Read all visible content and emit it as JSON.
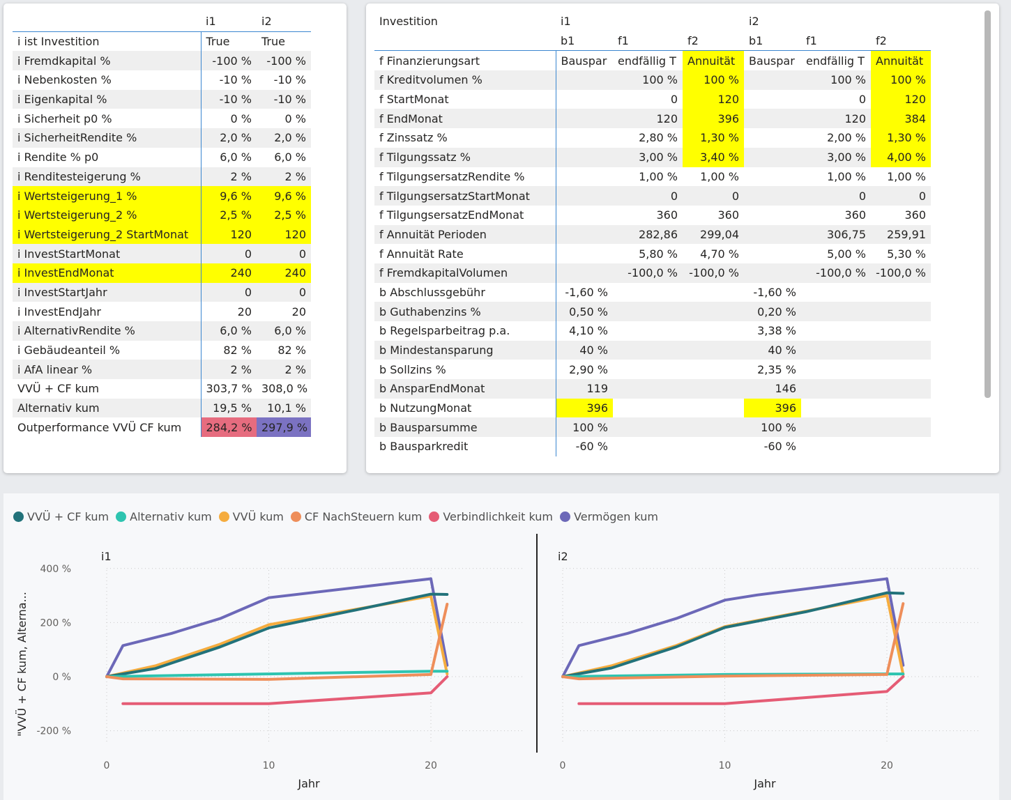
{
  "left_table": {
    "headers": [
      "",
      "i1",
      "i2"
    ],
    "rows": [
      {
        "label": "i ist Investition",
        "v": [
          "True",
          "True"
        ],
        "hl": false,
        "align": "left"
      },
      {
        "label": "i Fremdkapital %",
        "v": [
          "-100 %",
          "-100 %"
        ],
        "hl": false
      },
      {
        "label": "i Nebenkosten %",
        "v": [
          "-10 %",
          "-10 %"
        ],
        "hl": false
      },
      {
        "label": "i Eigenkapital %",
        "v": [
          "-10 %",
          "-10 %"
        ],
        "hl": false
      },
      {
        "label": "i Sicherheit p0 %",
        "v": [
          "0 %",
          "0 %"
        ],
        "hl": false
      },
      {
        "label": "i SicherheitRendite %",
        "v": [
          "2,0 %",
          "2,0 %"
        ],
        "hl": false
      },
      {
        "label": "i Rendite % p0",
        "v": [
          "6,0 %",
          "6,0 %"
        ],
        "hl": false
      },
      {
        "label": "i Renditesteigerung %",
        "v": [
          "2 %",
          "2 %"
        ],
        "hl": false
      },
      {
        "label": "i Wertsteigerung_1 %",
        "v": [
          "9,6 %",
          "9,6 %"
        ],
        "hl": true
      },
      {
        "label": "i Wertsteigerung_2 %",
        "v": [
          "2,5 %",
          "2,5 %"
        ],
        "hl": true
      },
      {
        "label": "i Wertsteigerung_2 StartMonat",
        "v": [
          "120",
          "120"
        ],
        "hl": true
      },
      {
        "label": "i InvestStartMonat",
        "v": [
          "0",
          "0"
        ],
        "hl": false
      },
      {
        "label": "i InvestEndMonat",
        "v": [
          "240",
          "240"
        ],
        "hl": true
      },
      {
        "label": "i InvestStartJahr",
        "v": [
          "0",
          "0"
        ],
        "hl": false
      },
      {
        "label": "i InvestEndJahr",
        "v": [
          "20",
          "20"
        ],
        "hl": false
      },
      {
        "label": "i AlternativRendite %",
        "v": [
          "6,0 %",
          "6,0 %"
        ],
        "hl": false
      },
      {
        "label": "i Gebäudeanteil %",
        "v": [
          "82 %",
          "82 %"
        ],
        "hl": false
      },
      {
        "label": "i AfA linear %",
        "v": [
          "2 %",
          "2 %"
        ],
        "hl": false
      },
      {
        "label": "VVÜ + CF kum",
        "v": [
          "303,7 %",
          "308,0 %"
        ],
        "hl": false
      },
      {
        "label": "Alternativ kum",
        "v": [
          "19,5 %",
          "10,1 %"
        ],
        "hl": false
      },
      {
        "label": "Outperformance VVÜ CF kum",
        "v": [
          "284,2 %",
          "297,9 %"
        ],
        "hl": false,
        "colors": [
          "#e66c7f",
          "#7b72c2"
        ]
      }
    ]
  },
  "right_table": {
    "header1": [
      "Investition",
      "i1",
      "",
      "",
      "i2",
      "",
      ""
    ],
    "header2": [
      "",
      "b1",
      "f1",
      "f2",
      "b1",
      "f1",
      "f2"
    ],
    "rows": [
      {
        "label": "f Finanzierungsart",
        "v": [
          "Bauspar",
          "endfällig T",
          "Annuität",
          "Bauspar",
          "endfällig T",
          "Annuität"
        ],
        "yl": [
          2,
          5
        ],
        "left": true
      },
      {
        "label": "f Kreditvolumen %",
        "v": [
          "",
          "100 %",
          "100 %",
          "",
          "100 %",
          "100 %"
        ],
        "yl": [
          2,
          5
        ]
      },
      {
        "label": "f StartMonat",
        "v": [
          "",
          "0",
          "120",
          "",
          "0",
          "120"
        ],
        "yl": [
          2,
          5
        ]
      },
      {
        "label": "f EndMonat",
        "v": [
          "",
          "120",
          "396",
          "",
          "120",
          "384"
        ],
        "yl": [
          2,
          5
        ]
      },
      {
        "label": "f Zinssatz %",
        "v": [
          "",
          "2,80 %",
          "1,30 %",
          "",
          "2,00 %",
          "1,30 %"
        ],
        "yl": [
          2,
          5
        ]
      },
      {
        "label": "f Tilgungssatz %",
        "v": [
          "",
          "3,00 %",
          "3,40 %",
          "",
          "3,00 %",
          "4,00 %"
        ],
        "yl": [
          2,
          5
        ]
      },
      {
        "label": "f TilgungsersatzRendite %",
        "v": [
          "",
          "1,00 %",
          "1,00 %",
          "",
          "1,00 %",
          "1,00 %"
        ],
        "yl": []
      },
      {
        "label": "f TilgungsersatzStartMonat",
        "v": [
          "",
          "0",
          "0",
          "",
          "0",
          "0"
        ],
        "yl": []
      },
      {
        "label": "f TilgungsersatzEndMonat",
        "v": [
          "",
          "360",
          "360",
          "",
          "360",
          "360"
        ],
        "yl": []
      },
      {
        "label": "f Annuität Perioden",
        "v": [
          "",
          "282,86",
          "299,04",
          "",
          "306,75",
          "259,91"
        ],
        "yl": []
      },
      {
        "label": "f Annuität Rate",
        "v": [
          "",
          "5,80 %",
          "4,70 %",
          "",
          "5,00 %",
          "5,30 %"
        ],
        "yl": []
      },
      {
        "label": "f FremdkapitalVolumen",
        "v": [
          "",
          "-100,0 %",
          "-100,0 %",
          "",
          "-100,0 %",
          "-100,0 %"
        ],
        "yl": []
      },
      {
        "label": "b Abschlussgebühr",
        "v": [
          "-1,60 %",
          "",
          "",
          "-1,60 %",
          "",
          ""
        ],
        "yl": []
      },
      {
        "label": "b Guthabenzins %",
        "v": [
          "0,50 %",
          "",
          "",
          "0,20 %",
          "",
          ""
        ],
        "yl": []
      },
      {
        "label": "b Regelsparbeitrag p.a.",
        "v": [
          "4,10 %",
          "",
          "",
          "3,38 %",
          "",
          ""
        ],
        "yl": []
      },
      {
        "label": "b Mindestansparung",
        "v": [
          "40 %",
          "",
          "",
          "40 %",
          "",
          ""
        ],
        "yl": []
      },
      {
        "label": "b Sollzins %",
        "v": [
          "2,90 %",
          "",
          "",
          "2,35 %",
          "",
          ""
        ],
        "yl": []
      },
      {
        "label": "b AnsparEndMonat",
        "v": [
          "119",
          "",
          "",
          "146",
          "",
          ""
        ],
        "yl": []
      },
      {
        "label": "b NutzungMonat",
        "v": [
          "396",
          "",
          "",
          "396",
          "",
          ""
        ],
        "yl": [
          0,
          3
        ]
      },
      {
        "label": "b Bausparsumme",
        "v": [
          "100 %",
          "",
          "",
          "100 %",
          "",
          ""
        ],
        "yl": []
      },
      {
        "label": "b Bausparkredit",
        "v": [
          "-60 %",
          "",
          "",
          "-60 %",
          "",
          ""
        ],
        "yl": []
      }
    ]
  },
  "chart_data": {
    "type": "line",
    "ylabel": "\"VVÜ + CF kum, Alterna...",
    "xlabel": "Jahr",
    "ylim": [
      -250,
      420
    ],
    "xlim": [
      0,
      25
    ],
    "yticks": [
      400,
      200,
      0,
      -200
    ],
    "ytick_labels": [
      "400 %",
      "200 %",
      "0 %",
      "-200 %"
    ],
    "xticks": [
      0,
      10,
      20
    ],
    "xtick_labels": [
      "0",
      "10",
      "20"
    ],
    "legend": [
      {
        "name": "VVÜ + CF kum",
        "color": "#22727a"
      },
      {
        "name": "Alternativ kum",
        "color": "#2ec4b0"
      },
      {
        "name": "VVÜ kum",
        "color": "#f5ac3e"
      },
      {
        "name": "CF NachSteuern kum",
        "color": "#ee8e5a"
      },
      {
        "name": "Verbindlichkeit kum",
        "color": "#e55c75"
      },
      {
        "name": "Vermögen kum",
        "color": "#6c68b8"
      }
    ],
    "panels": [
      {
        "title": "i1",
        "series": [
          {
            "name": "Vermögen kum",
            "color": "#6c68b8",
            "points": [
              [
                0,
                0
              ],
              [
                1,
                115
              ],
              [
                4,
                160
              ],
              [
                7,
                215
              ],
              [
                10,
                292
              ],
              [
                20,
                362
              ],
              [
                21,
                42
              ]
            ]
          },
          {
            "name": "VVÜ kum",
            "color": "#f5ac3e",
            "points": [
              [
                0,
                0
              ],
              [
                3,
                40
              ],
              [
                7,
                120
              ],
              [
                10,
                192
              ],
              [
                15,
                245
              ],
              [
                20,
                298
              ],
              [
                21,
                10
              ]
            ]
          },
          {
            "name": "VVÜ + CF kum",
            "color": "#22727a",
            "points": [
              [
                0,
                0
              ],
              [
                3,
                30
              ],
              [
                7,
                110
              ],
              [
                10,
                180
              ],
              [
                15,
                242
              ],
              [
                20,
                305
              ],
              [
                21,
                304
              ]
            ]
          },
          {
            "name": "Alternativ kum",
            "color": "#2ec4b0",
            "points": [
              [
                0,
                0
              ],
              [
                10,
                10
              ],
              [
                20,
                20
              ],
              [
                21,
                20
              ]
            ]
          },
          {
            "name": "CF NachSteuern kum",
            "color": "#ee8e5a",
            "points": [
              [
                0,
                0
              ],
              [
                1,
                -8
              ],
              [
                10,
                -10
              ],
              [
                20,
                8
              ],
              [
                21,
                268
              ]
            ]
          },
          {
            "name": "Verbindlichkeit kum",
            "color": "#e55c75",
            "points": [
              [
                1,
                -100
              ],
              [
                10,
                -100
              ],
              [
                20,
                -60
              ],
              [
                21,
                0
              ]
            ]
          }
        ]
      },
      {
        "title": "i2",
        "series": [
          {
            "name": "Vermögen kum",
            "color": "#6c68b8",
            "points": [
              [
                0,
                0
              ],
              [
                1,
                115
              ],
              [
                4,
                160
              ],
              [
                7,
                215
              ],
              [
                10,
                283
              ],
              [
                12,
                302
              ],
              [
                20,
                362
              ],
              [
                21,
                42
              ]
            ]
          },
          {
            "name": "VVÜ kum",
            "color": "#f5ac3e",
            "points": [
              [
                0,
                0
              ],
              [
                3,
                40
              ],
              [
                7,
                115
              ],
              [
                10,
                185
              ],
              [
                15,
                242
              ],
              [
                20,
                300
              ],
              [
                21,
                8
              ]
            ]
          },
          {
            "name": "VVÜ + CF kum",
            "color": "#22727a",
            "points": [
              [
                0,
                0
              ],
              [
                3,
                32
              ],
              [
                7,
                110
              ],
              [
                10,
                182
              ],
              [
                15,
                240
              ],
              [
                20,
                310
              ],
              [
                21,
                308
              ]
            ]
          },
          {
            "name": "Alternativ kum",
            "color": "#2ec4b0",
            "points": [
              [
                0,
                0
              ],
              [
                10,
                8
              ],
              [
                20,
                10
              ],
              [
                21,
                10
              ]
            ]
          },
          {
            "name": "CF NachSteuern kum",
            "color": "#ee8e5a",
            "points": [
              [
                0,
                0
              ],
              [
                1,
                -8
              ],
              [
                10,
                2
              ],
              [
                20,
                8
              ],
              [
                21,
                270
              ]
            ]
          },
          {
            "name": "Verbindlichkeit kum",
            "color": "#e55c75",
            "points": [
              [
                1,
                -100
              ],
              [
                10,
                -100
              ],
              [
                20,
                -55
              ],
              [
                21,
                0
              ]
            ]
          }
        ]
      }
    ]
  }
}
